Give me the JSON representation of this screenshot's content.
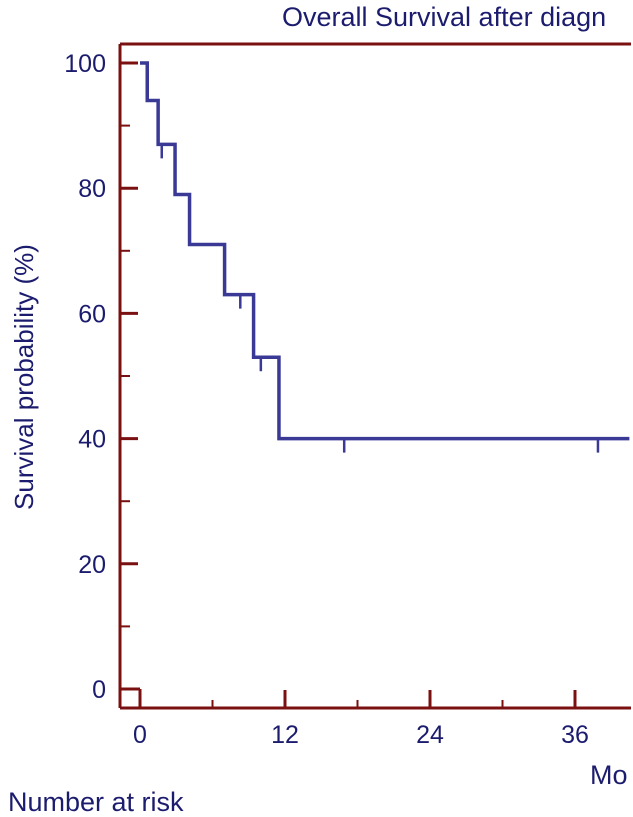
{
  "header": {
    "title": "Overall Survival after diagn"
  },
  "footer": {
    "risk_label": "Number at risk"
  },
  "colors": {
    "axis": "#7a1010",
    "curve": "#3a3a96",
    "text": "#1c1c6e"
  },
  "chart_data": {
    "type": "line",
    "title": "Overall Survival after diagn",
    "ylabel": "Survival probability (%)",
    "xlabel": "Mo",
    "xlim": [
      -1.7,
      40.5
    ],
    "ylim": [
      0,
      100
    ],
    "x_ticks": [
      0,
      12,
      24,
      36
    ],
    "y_ticks": [
      0,
      20,
      40,
      60,
      80,
      100
    ],
    "grid": false,
    "legend": "none",
    "series": [
      {
        "step": true,
        "x": [
          0,
          0.6,
          1.5,
          2.9,
          4.1,
          7.0,
          9.4,
          11.5,
          40.5
        ],
        "y": [
          100,
          94,
          87,
          79,
          71,
          63,
          53,
          40,
          40
        ]
      }
    ],
    "censor_marks": [
      {
        "x": 1.8,
        "y": 87
      },
      {
        "x": 8.3,
        "y": 63
      },
      {
        "x": 10.0,
        "y": 53
      },
      {
        "x": 16.9,
        "y": 40
      },
      {
        "x": 37.9,
        "y": 40
      }
    ]
  }
}
